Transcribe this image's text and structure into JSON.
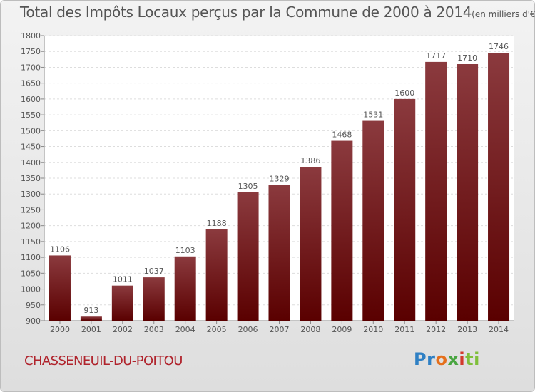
{
  "chart_data": {
    "type": "bar",
    "title": "Total des Impôts Locaux perçus par la Commune de 2000 à 2014",
    "unit_note": "(en milliers d'€)",
    "categories": [
      "2000",
      "2001",
      "2002",
      "2003",
      "2004",
      "2005",
      "2006",
      "2007",
      "2008",
      "2009",
      "2010",
      "2011",
      "2012",
      "2013",
      "2014"
    ],
    "values": [
      1106,
      913,
      1011,
      1037,
      1103,
      1188,
      1305,
      1329,
      1386,
      1468,
      1531,
      1600,
      1717,
      1710,
      1746
    ],
    "xlabel": "",
    "ylabel": "",
    "ylim": [
      900,
      1800
    ],
    "ytick_step": 50,
    "grid": true,
    "bar_color_top": "#8b3a3e",
    "bar_color_bottom": "#5a0000",
    "data_labels": true
  },
  "commune": "CHASSENEUIL-DU-POITOU",
  "logo": {
    "p1": "Pr",
    "p2": "o",
    "p3": "x",
    "p4": "i",
    "p5": "ti"
  }
}
